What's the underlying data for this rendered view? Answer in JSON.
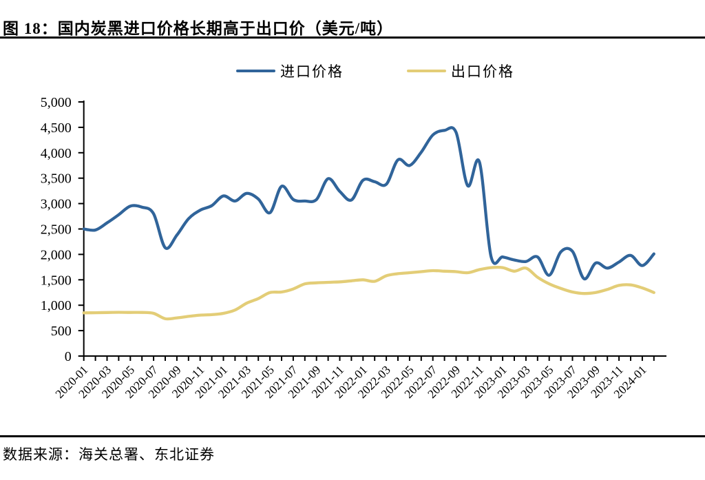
{
  "header": {
    "title": "图 18：国内炭黑进口价格长期高于出口价（美元/吨）"
  },
  "footer": {
    "source": "数据来源：海关总署、东北证券"
  },
  "colors": {
    "import_line": "#30649A",
    "export_line": "#E3CD77",
    "axis": "#000000"
  },
  "chart_data": {
    "type": "line",
    "title": "图 18：国内炭黑进口价格长期高于出口价（美元/吨）",
    "unit": "美元/吨",
    "ylim": [
      0,
      5000
    ],
    "y_tick_step": 500,
    "y_tick_labels": [
      "0",
      "500",
      "1,000",
      "1,500",
      "2,000",
      "2,500",
      "3,000",
      "3,500",
      "4,000",
      "4,500",
      "5,000"
    ],
    "grid": false,
    "legend_position": "top-center",
    "x": [
      "2020-01",
      "2020-02",
      "2020-03",
      "2020-04",
      "2020-05",
      "2020-06",
      "2020-07",
      "2020-08",
      "2020-09",
      "2020-10",
      "2020-11",
      "2020-12",
      "2021-01",
      "2021-02",
      "2021-03",
      "2021-04",
      "2021-05",
      "2021-06",
      "2021-07",
      "2021-08",
      "2021-09",
      "2021-10",
      "2021-11",
      "2021-12",
      "2022-01",
      "2022-02",
      "2022-03",
      "2022-04",
      "2022-05",
      "2022-06",
      "2022-07",
      "2022-08",
      "2022-09",
      "2022-10",
      "2022-11",
      "2022-12",
      "2023-01",
      "2023-02",
      "2023-03",
      "2023-04",
      "2023-05",
      "2023-06",
      "2023-07",
      "2023-08",
      "2023-09",
      "2023-10",
      "2023-11",
      "2023-12",
      "2024-01",
      "2024-02"
    ],
    "x_tick_labels_shown": [
      "2020-01",
      "2020-03",
      "2020-05",
      "2020-07",
      "2020-09",
      "2020-11",
      "2021-01",
      "2021-03",
      "2021-05",
      "2021-07",
      "2021-09",
      "2021-11",
      "2022-01",
      "2022-03",
      "2022-05",
      "2022-07",
      "2022-09",
      "2022-11",
      "2023-01",
      "2023-03",
      "2023-05",
      "2023-07",
      "2023-09",
      "2023-11",
      "2024-01"
    ],
    "series": [
      {
        "name": "进口价格",
        "color": "#30649A",
        "values": [
          2500,
          2480,
          2620,
          2780,
          2950,
          2930,
          2800,
          2130,
          2380,
          2700,
          2870,
          2960,
          3150,
          3050,
          3200,
          3090,
          2820,
          3340,
          3080,
          3050,
          3080,
          3490,
          3240,
          3070,
          3460,
          3430,
          3380,
          3860,
          3750,
          4010,
          4350,
          4440,
          4400,
          3350,
          3820,
          1960,
          1950,
          1890,
          1860,
          1950,
          1590,
          2050,
          2060,
          1520,
          1830,
          1730,
          1850,
          1980,
          1780,
          2010
        ]
      },
      {
        "name": "出口价格",
        "color": "#E3CD77",
        "values": [
          850,
          852,
          856,
          860,
          858,
          858,
          840,
          735,
          750,
          780,
          805,
          815,
          840,
          905,
          1040,
          1130,
          1250,
          1260,
          1320,
          1420,
          1440,
          1450,
          1460,
          1480,
          1500,
          1470,
          1580,
          1620,
          1640,
          1660,
          1680,
          1670,
          1660,
          1640,
          1700,
          1740,
          1740,
          1670,
          1730,
          1550,
          1420,
          1330,
          1260,
          1230,
          1250,
          1310,
          1390,
          1400,
          1340,
          1250
        ]
      }
    ]
  }
}
